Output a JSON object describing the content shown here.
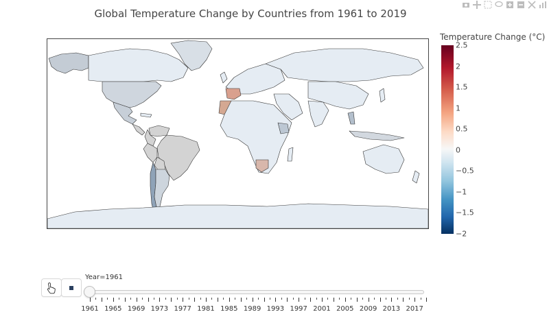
{
  "title": "Global Temperature Change by Countries from 1961 to 2019",
  "colorbar": {
    "title": "Temperature Change (°C)",
    "ticks": [
      "2.5",
      "2",
      "1.5",
      "1",
      "0.5",
      "0",
      "−0.5",
      "−1",
      "−1.5",
      "−2"
    ],
    "range": [
      -2,
      2.5
    ],
    "colorscale": "RdBu (reversed)"
  },
  "slider": {
    "current_label": "Year=1961",
    "current_year": 1961,
    "labels": [
      "1961",
      "1965",
      "1969",
      "1973",
      "1977",
      "1981",
      "1985",
      "1989",
      "1993",
      "1997",
      "2001",
      "2005",
      "2009",
      "2013",
      "2017"
    ],
    "min_year": 1961,
    "max_year": 2019
  },
  "controls": {
    "play": "hand-pointer-icon",
    "stop": "stop-icon"
  },
  "map_colors": {
    "default_land": "#e5ecf3",
    "usa": "#cfd6de",
    "greenland": "#d8dfe6",
    "alaska": "#c4ccd5",
    "mexico": "#c7cfd8",
    "spain": "#d9a08e",
    "morocco": "#d4a892",
    "south_africa": "#d8b7ab",
    "south_america_grey": "#d3d3d3",
    "chile": "#8fa3b8",
    "argentina": "#cdd5dd",
    "ethiopia": "#bcc7d3",
    "thailand": "#b3bfcc",
    "indonesia": "#d2d8df"
  }
}
